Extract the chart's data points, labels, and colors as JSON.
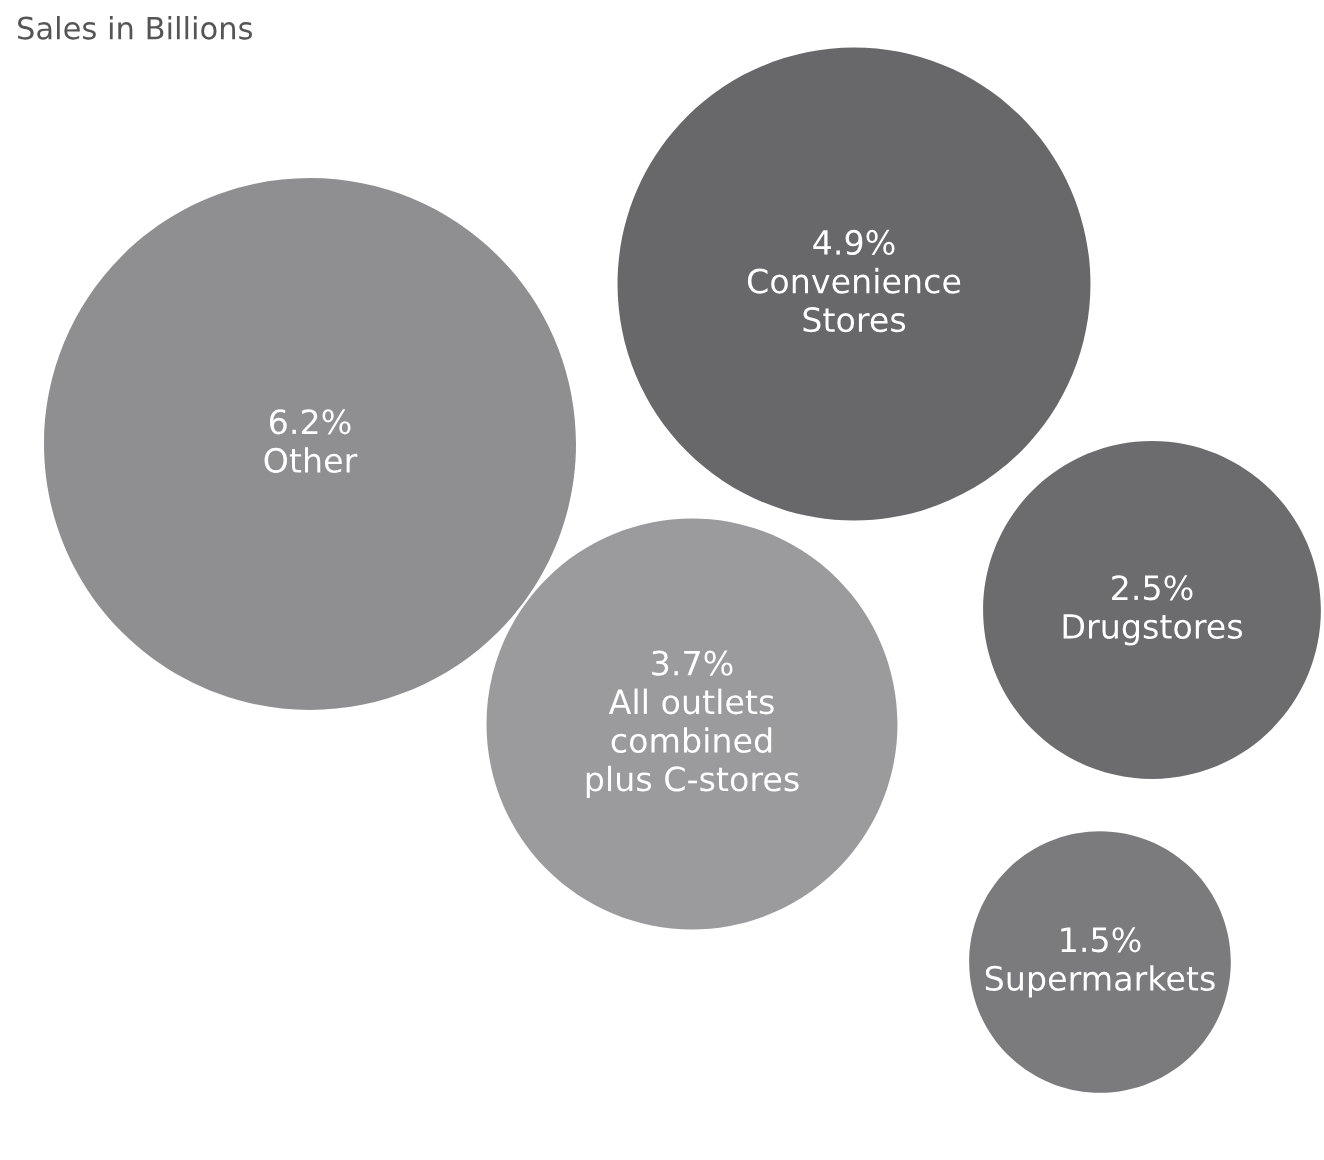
{
  "chart_data": {
    "type": "other",
    "title": "Sales in Billions",
    "categories": [
      "Other",
      "Convenience\nStores",
      "Drugstores",
      "All outlets\ncombined\nplus C-stores",
      "Supermarkets"
    ],
    "values": [
      6.2,
      4.9,
      2.5,
      3.7,
      1.5
    ],
    "value_labels": [
      "6.2%",
      "4.9%",
      "2.5%",
      "3.7%",
      "1.5%"
    ],
    "colors": [
      "#8f8f91",
      "#68686a",
      "#6c6c6e",
      "#9b9b9d",
      "#7b7b7d"
    ]
  }
}
